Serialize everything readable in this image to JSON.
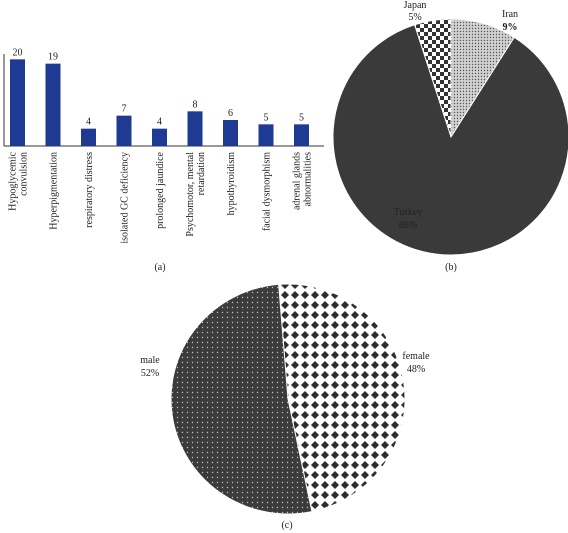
{
  "chart_data": [
    {
      "type": "bar",
      "panel_label": "(a)",
      "categories": [
        "Hypoglycemic convulsion",
        "Hyperpigmentation",
        "respiratory distress",
        "isolated GC deficiency",
        "prolonged jaundice",
        "Psychomotor, mental retardation",
        "hypothyroidism",
        "facial dysmorphism",
        "adrenal glands abnormalities"
      ],
      "category_lines": [
        [
          "Hypoglycemic",
          "convulsion"
        ],
        [
          "Hyperpigmentation"
        ],
        [
          "respiratory distress"
        ],
        [
          "isolated GC deficiency"
        ],
        [
          "prolonged jaundice"
        ],
        [
          "Psychomotor, mental",
          "retardation"
        ],
        [
          "hypothyroidism"
        ],
        [
          "facial dysmorphism"
        ],
        [
          "adrenal glands",
          "abnormalities"
        ]
      ],
      "values": [
        20,
        19,
        4,
        7,
        4,
        8,
        6,
        5,
        5
      ],
      "data_labels": [
        "20",
        "19",
        "4",
        "7",
        "4",
        "8",
        "6",
        "5",
        "5"
      ],
      "ylim": [
        0,
        24
      ],
      "grid": false,
      "bar_color": "#1f3a93"
    },
    {
      "type": "pie",
      "panel_label": "(b)",
      "slices": [
        {
          "label": "Japan",
          "pct_label": "5%",
          "value": 5,
          "fill": "checker"
        },
        {
          "label": "Iran",
          "pct_label": "9%",
          "value": 9,
          "fill": "stipple"
        },
        {
          "label": "Turkey",
          "pct_label": "86%",
          "value": 86,
          "fill": "dark"
        }
      ]
    },
    {
      "type": "pie",
      "panel_label": "(c)",
      "slices": [
        {
          "label": "female",
          "pct_label": "48%",
          "value": 48,
          "fill": "diamond"
        },
        {
          "label": "male",
          "pct_label": "52%",
          "value": 52,
          "fill": "dots"
        }
      ]
    }
  ]
}
